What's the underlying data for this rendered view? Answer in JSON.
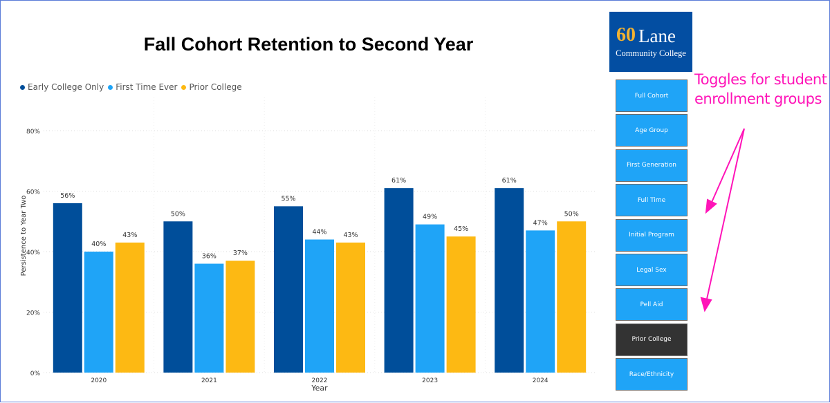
{
  "chart_data": {
    "type": "bar",
    "title": "Fall Cohort Retention to Second Year",
    "xlabel": "Year",
    "ylabel": "Persistence to Year Two",
    "categories": [
      "2020",
      "2021",
      "2022",
      "2023",
      "2024"
    ],
    "ylim": [
      0,
      80
    ],
    "yticks": [
      "0%",
      "20%",
      "40%",
      "60%",
      "80%"
    ],
    "grid": true,
    "legend_position": "top-left",
    "series": [
      {
        "name": "Early College Only",
        "color": "#004e9a",
        "values": [
          56,
          50,
          55,
          61,
          61
        ]
      },
      {
        "name": "First Time Ever",
        "color": "#1fa4f7",
        "values": [
          40,
          36,
          44,
          49,
          47
        ]
      },
      {
        "name": "Prior College",
        "color": "#fdb913",
        "values": [
          43,
          37,
          43,
          45,
          50
        ]
      }
    ]
  },
  "logo": {
    "six": "60",
    "name": "Lane",
    "sub": "Community College"
  },
  "toggles": [
    {
      "label": "Full Cohort",
      "selected": false
    },
    {
      "label": "Age Group",
      "selected": false
    },
    {
      "label": "First Generation",
      "selected": false
    },
    {
      "label": "Full Time",
      "selected": false
    },
    {
      "label": "Initial Program",
      "selected": false
    },
    {
      "label": "Legal Sex",
      "selected": false
    },
    {
      "label": "Pell Aid",
      "selected": false
    },
    {
      "label": "Prior College",
      "selected": true
    },
    {
      "label": "Race/Ethnicity",
      "selected": false
    }
  ],
  "annotation": {
    "text": "Toggles for student enrollment groups",
    "color": "#ff14b8"
  }
}
